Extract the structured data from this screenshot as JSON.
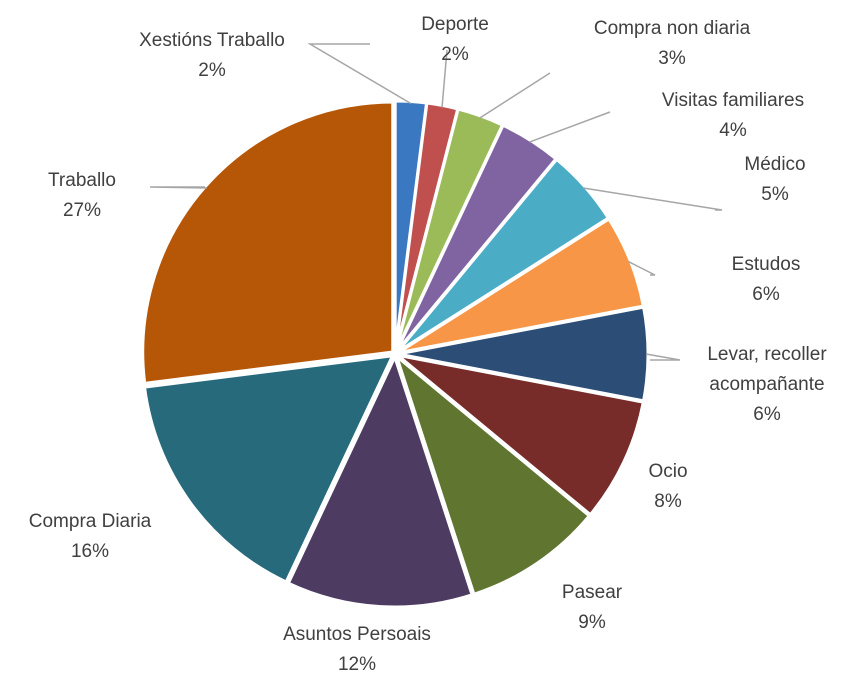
{
  "chart_data": {
    "type": "pie",
    "categories": [
      "Xestións Traballo",
      "Deporte",
      "Compra non diaria",
      "Visitas familiares",
      "Médico",
      "Estudos",
      "Levar, recoller acompañante",
      "Ocio",
      "Pasear",
      "Asuntos Persoais",
      "Compra Diaria",
      "Traballo"
    ],
    "values": [
      2,
      2,
      3,
      4,
      5,
      6,
      6,
      8,
      9,
      12,
      16,
      27
    ],
    "value_labels": [
      "2%",
      "2%",
      "3%",
      "4%",
      "5%",
      "6%",
      "6%",
      "8%",
      "9%",
      "12%",
      "16%",
      "27%"
    ],
    "colors": [
      "#3a78c2",
      "#c0504d",
      "#9bbb59",
      "#8064a2",
      "#4bacc6",
      "#f79646",
      "#2c4d75",
      "#772c2a",
      "#5f7530",
      "#4d3b62",
      "#276a7c",
      "#b65708"
    ]
  }
}
